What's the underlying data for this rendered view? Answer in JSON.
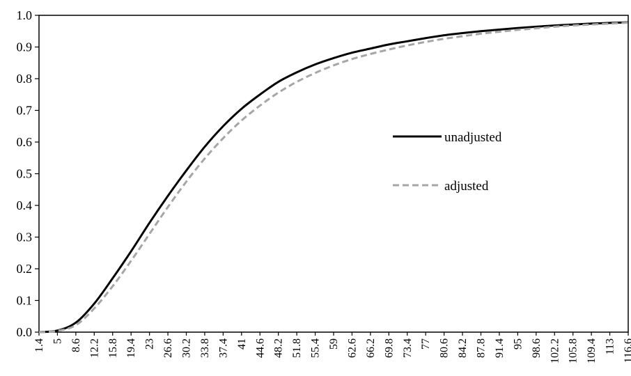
{
  "chart_data": {
    "type": "line",
    "title": "",
    "xlabel": "",
    "ylabel": "",
    "ylim": [
      0,
      1
    ],
    "y_ticks": [
      "0.0",
      "0.1",
      "0.2",
      "0.3",
      "0.4",
      "0.5",
      "0.6",
      "0.7",
      "0.8",
      "0.9",
      "1.0"
    ],
    "x_ticks": [
      "1.4",
      "5",
      "8.6",
      "12.2",
      "15.8",
      "19.4",
      "23",
      "26.6",
      "30.2",
      "33.8",
      "37.4",
      "41",
      "44.6",
      "48.2",
      "51.8",
      "55.4",
      "59",
      "62.6",
      "66.2",
      "69.8",
      "73.4",
      "77",
      "80.6",
      "84.2",
      "87.8",
      "91.4",
      "95",
      "98.6",
      "102.2",
      "105.8",
      "109.4",
      "113",
      "116.6"
    ],
    "x": [
      1.4,
      5,
      8.6,
      12.2,
      15.8,
      19.4,
      23,
      26.6,
      30.2,
      33.8,
      37.4,
      41,
      44.6,
      48.2,
      51.8,
      55.4,
      59,
      62.6,
      66.2,
      69.8,
      73.4,
      77,
      80.6,
      84.2,
      87.8,
      91.4,
      95,
      98.6,
      102.2,
      105.8,
      109.4,
      113,
      116.6
    ],
    "grid": false,
    "legend_position": "right-middle",
    "series": [
      {
        "name": "unadjusted",
        "color": "#000000",
        "dash": "solid",
        "values": [
          0.0,
          0.005,
          0.03,
          0.09,
          0.17,
          0.255,
          0.345,
          0.43,
          0.51,
          0.585,
          0.65,
          0.705,
          0.75,
          0.79,
          0.82,
          0.845,
          0.865,
          0.882,
          0.895,
          0.908,
          0.918,
          0.928,
          0.937,
          0.944,
          0.95,
          0.955,
          0.96,
          0.964,
          0.968,
          0.971,
          0.974,
          0.976,
          0.978
        ]
      },
      {
        "name": "adjusted",
        "color": "#a6a6a6",
        "dash": "dashed",
        "values": [
          0.0,
          0.004,
          0.022,
          0.075,
          0.145,
          0.225,
          0.31,
          0.395,
          0.475,
          0.548,
          0.612,
          0.668,
          0.715,
          0.756,
          0.79,
          0.818,
          0.842,
          0.862,
          0.878,
          0.892,
          0.905,
          0.916,
          0.926,
          0.934,
          0.942,
          0.948,
          0.954,
          0.959,
          0.964,
          0.968,
          0.971,
          0.974,
          0.977
        ]
      }
    ]
  }
}
